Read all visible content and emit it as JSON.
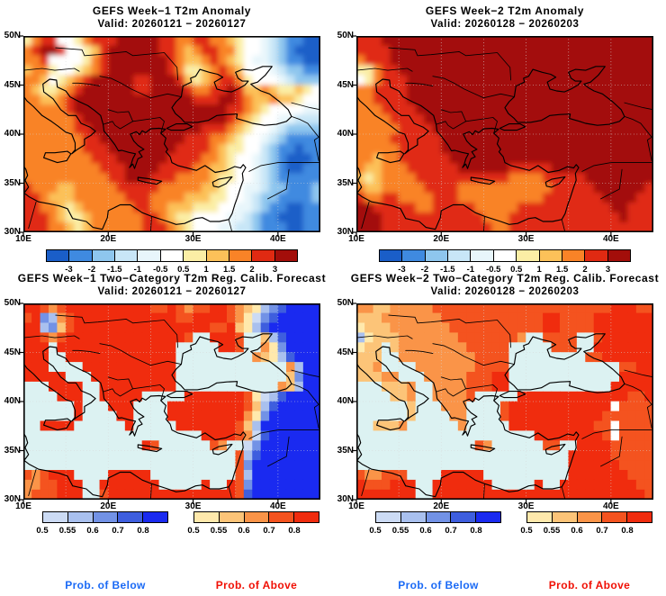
{
  "app": {
    "background": "#ffffff"
  },
  "axes": {
    "lat_ticks": [
      "50N",
      "45N",
      "40N",
      "35N",
      "30N"
    ],
    "lat_values": [
      50,
      45,
      40,
      35,
      30
    ],
    "lon_ticks": [
      "10E",
      "20E",
      "30E",
      "40E"
    ],
    "lon_values": [
      10,
      20,
      30,
      40
    ],
    "lon_range": [
      10,
      45
    ],
    "lat_range": [
      30,
      50
    ],
    "grid_lons": [
      15,
      20,
      25,
      30,
      35,
      40
    ],
    "grid_lats": [
      35,
      40,
      45
    ]
  },
  "palettes": {
    "anomaly": {
      "codes": "ABCDEFGHIJK",
      "colors": [
        "#1a5ec8",
        "#3f8ae0",
        "#8ec6ee",
        "#c8e6f7",
        "#e8f6fb",
        "#ffffff",
        "#fbeea5",
        "#fcc159",
        "#f98327",
        "#e02a12",
        "#a30e0a"
      ],
      "levels": [
        "-3",
        "-2",
        "-1.5",
        "-1",
        "-0.5",
        "0.5",
        "1",
        "1.5",
        "2",
        "3"
      ]
    },
    "prob_below": {
      "codes": "abcde",
      "colors": [
        "#ccdbf4",
        "#a9c0ee",
        "#7292e6",
        "#3e5ede",
        "#1a2af0"
      ]
    },
    "prob_above": {
      "codes": "12345",
      "colors": [
        "#ffe9ac",
        "#fcc478",
        "#fa9448",
        "#f4531f",
        "#f02c0e"
      ]
    },
    "prob_levels": [
      "0.5",
      "0.55",
      "0.6",
      "0.7",
      "0.8"
    ],
    "sea": "#dcf2f2",
    "none": "#ffffff"
  },
  "footer": {
    "below_label": "Prob. of Below",
    "above_label": "Prob. of Above",
    "below_color": "#1b6af5",
    "above_color": "#f01005"
  },
  "chart_data": [
    {
      "id": "week1-t2m-anomaly",
      "type": "heatmap",
      "title": "GEFS Week−1 T2m Anomaly",
      "valid": "Valid: 20260121 − 20260127",
      "colorbar": "anomaly",
      "smooth": true,
      "grid": [
        "GIJJFFGIJJJKKKKKJJIIJJIIHGFFEDCBBAA",
        "IJKKJFFGHJKKKKKKJJIHIJJIIGFFEDCBAAA",
        "IIJFFFFGIJKKKKKKKJIHHIJIHGFEEDCBBAA",
        "HIIGFFGHIJKKKKKKKJIGGHIJIHFFFEDCCBB",
        "IIHFGHIJKKKKKJJKKKJHGHIJJIGFFFEDCCC",
        "IHGGHIJKKKKKKJJKKKKJIIJJKJHHIHGGHGF",
        "IIHHIJKKKKKKKKKKKKKKJJJKKJIHHIHHGFF",
        "IIIIIJKKKKKKKKKKKKKKKKKKJJIHGFFFFEE",
        "IIIIIIJKKKKKKKKKKKKKKKKKJIHGFFEEDDD",
        "IIIIIIJJKKKKKKKKKKKKKJJJIHGFFEDCCCC",
        "IIIIIIIJJKKKKKKKKKKJJJIIHGFFEDCBBBB",
        "IIIIIIIJJJKKKKKKKKJJJJIHGGFFDCBBABB",
        "IIIIIIIIJJJKKKKKKJJJJIIHGFFEDCBAAAB",
        "IIIIIIIIIJJJKKKKJJJJIIHHGFFEDCBAABB",
        "IIIIIIIIIIJJKKKJJJIIIIHGGFFEDCBBBBB",
        "JIIIHHIIIIIJJJJJIIIIIHHGFFEEDCCBBBC",
        "JJIHHHIIIIIIJJJIIIIHHHGGFFEDCCBBBBC",
        "JJIIHGHIIIIIIJJIIHHHGGGFFEEDCBBAABB",
        "JJJIHGGHIIIIIIJJIHGGFFFFEEDCBBAAABB",
        "JJJIIHGHIIIIIIJJJIHGFFFEEDDCBBBAABB"
      ]
    },
    {
      "id": "week2-t2m-anomaly",
      "type": "heatmap",
      "title": "GEFS Week−2 T2m Anomaly",
      "valid": "Valid: 20260128 − 20260203",
      "colorbar": "anomaly",
      "smooth": true,
      "grid": [
        "JJJKKKKKKKKKKKKKKKKKKKKKKKKKKKKKKKK",
        "JJJJKKKKKKKKKKKKKKKKKKKKKKKKKKKKKKK",
        "IJJJKKKKKKKKKKKKKKKKKKKKKKKKKKKKKKK",
        "GGIJJKKKKKKKKKKKKKKKKKKKKKKKKKKKKKK",
        "FGIJJJKKKKKKKKKKKKKKKKKKKKKKKKKKKKK",
        "IIJJJJKKKKKKKKKKKKKKKKKKKKKKKKKKKKK",
        "IIJJJJKKKKKKKKKKKKKKKKKKKKKKKKKKKKK",
        "IIIJJJJKKKKKKKKKKKKKKKKKKKKKKKKKKKK",
        "IIIIJJJJKKKKKKKKKKKKKKKKKKKKKKKKKKK",
        "IIIIIJJJJKKKKKKKKKKKKKKKKKKKKKKKKKK",
        "IIIIJJJJJJKKKKKKKKKKKKKKKKKKKKKKKKK",
        "IIIIIJJJJJKKKKKKKKKKKKKKKKKKKKKKKKK",
        "IIHIIJJJJJJKKKKKKKKKKKKKKKKKKKKKKKK",
        "IHHIIIJJJJJJKKKKKKJJJJJKKKKKKKKKKKK",
        "HGHIIIIJJJJJJJJJJJIIIIJJJJJKKKKKKKK",
        "IHHIIIIIJJJJIIIIIIIIIIIJJJJJKKKKKKJ",
        "JIIJJIIIIJJJIIIIIIIIIIJJJJJJJKKKKJJ",
        "KKJJJJJIIJJJJJIIIIIJJJJJJJJJJJKKJJJ",
        "KKKJJJJJJJJJJJJIIIJJJJJJJJJJJJJKJJJ",
        "KKKJJJJJJJJJJJJJIIJJJJJJJJJJJJJJJJJ"
      ]
    },
    {
      "id": "week1-two-category",
      "type": "heatmap",
      "title": "GEFS Week−1 Two−Category T2m Reg. Calib. Forecast",
      "valid": "Valid: 20260121 − 20260127",
      "colorbar": "two_category",
      "smooth": false,
      "grid": [
        "5543455555555554454344554321bcdeeee",
        "45cb34555555555555445555431acdeeeee",
        "55bc24555555555555555544521bdeeeeee",
        "55434555555555555554~~5554~~2bdeeee",
        "555~55555555555555~~~~~554~~31ceeee",
        "555~~5555555555555~~~~~~~~~321bdeee",
        "555~~~~55555555555~~~~~~~~~~~~~3bee",
        "55555~~~5555555555~~~~~~~~~~~~~2cee",
        "~~~5555~~555555555~~~~~~~~~~~~32bee",
        "~~~~555~~55555~~~~~555555541abdeeee",
        "~~~~~~5~~~555~~~~55555555542bdeeeee",
        "~~~~~~5~~~~55~~~~55555555531ceeeeee",
        "~~5555~~~~~~5~~~~~555555542beeeeeee",
        "~~~~~~~~~~~~~~~~~~~~~555543adeeeeee",
        "~~~~~~~~~~~~~~54~~~~~~43~~aceeeeeee",
        "~~~~~~~~~~~~~~~~~~~~~~~~~4bdeeeeeee",
        "~~~~~~~~~~~~~~~~~~~~~~~~~4ceeeeeeee",
        "434555~~~~55555~~~~~~~~~~4beeeeeeee",
        "3344555~~5555555~~~~~5~~54ceeeeeeee",
        "3444555~~45555555555555554deeeeeeee"
      ]
    },
    {
      "id": "week2-two-category",
      "type": "heatmap",
      "title": "GEFS Week−2 Two−Category T2m Reg. Calib. Forecast",
      "valid": "Valid: 20260128 − 20260203",
      "colorbar": "two_category",
      "smooth": false,
      "grid": [
        "33223333344444444444444444444455544",
        "22233333334444444444445544445555555",
        "12223333333444444444445544445555555",
        "b1222333333344444443~~4444~~4555555",
        "122~23333333344444~~~~~444~~5555555",
        "222~~3333333334444~~~~~~~~~44555555",
        "223~~~~33333334444~~~~~~~~~~~~~4455",
        "22233~~~3333344455~~~~~~~~~~~~~5555",
        "~~~2223~~333344455~~~~~~~~~~~~55555",
        "~~~~223~~33334~~~~~5555555555555445",
        "~~~~~~2~~~333~~~~4555555555555 4444",
        "~~~~~~2~~~~33~~~~45555555555544444",
        "~~2223~~~~~~3~~~~~555555555544 4444",
        "~~~~~~~~~~~~~~~~~~~~~555555554 4444",
        "~~~~~~~~~~~~~~43~~~~~~44~~555544444",
        "~~~~~~~~~~~~~~~~~~~~~~~~~5555544444",
        "~~~~~~~~~~~~~~~~~~~~~~~~~5555554444",
        "433444~~~~55555~~~~~~~~~~5555555444",
        "5444555~~5555555~~~~~5~~55555555544",
        "5555555~~55555555555555555555555554"
      ]
    }
  ]
}
